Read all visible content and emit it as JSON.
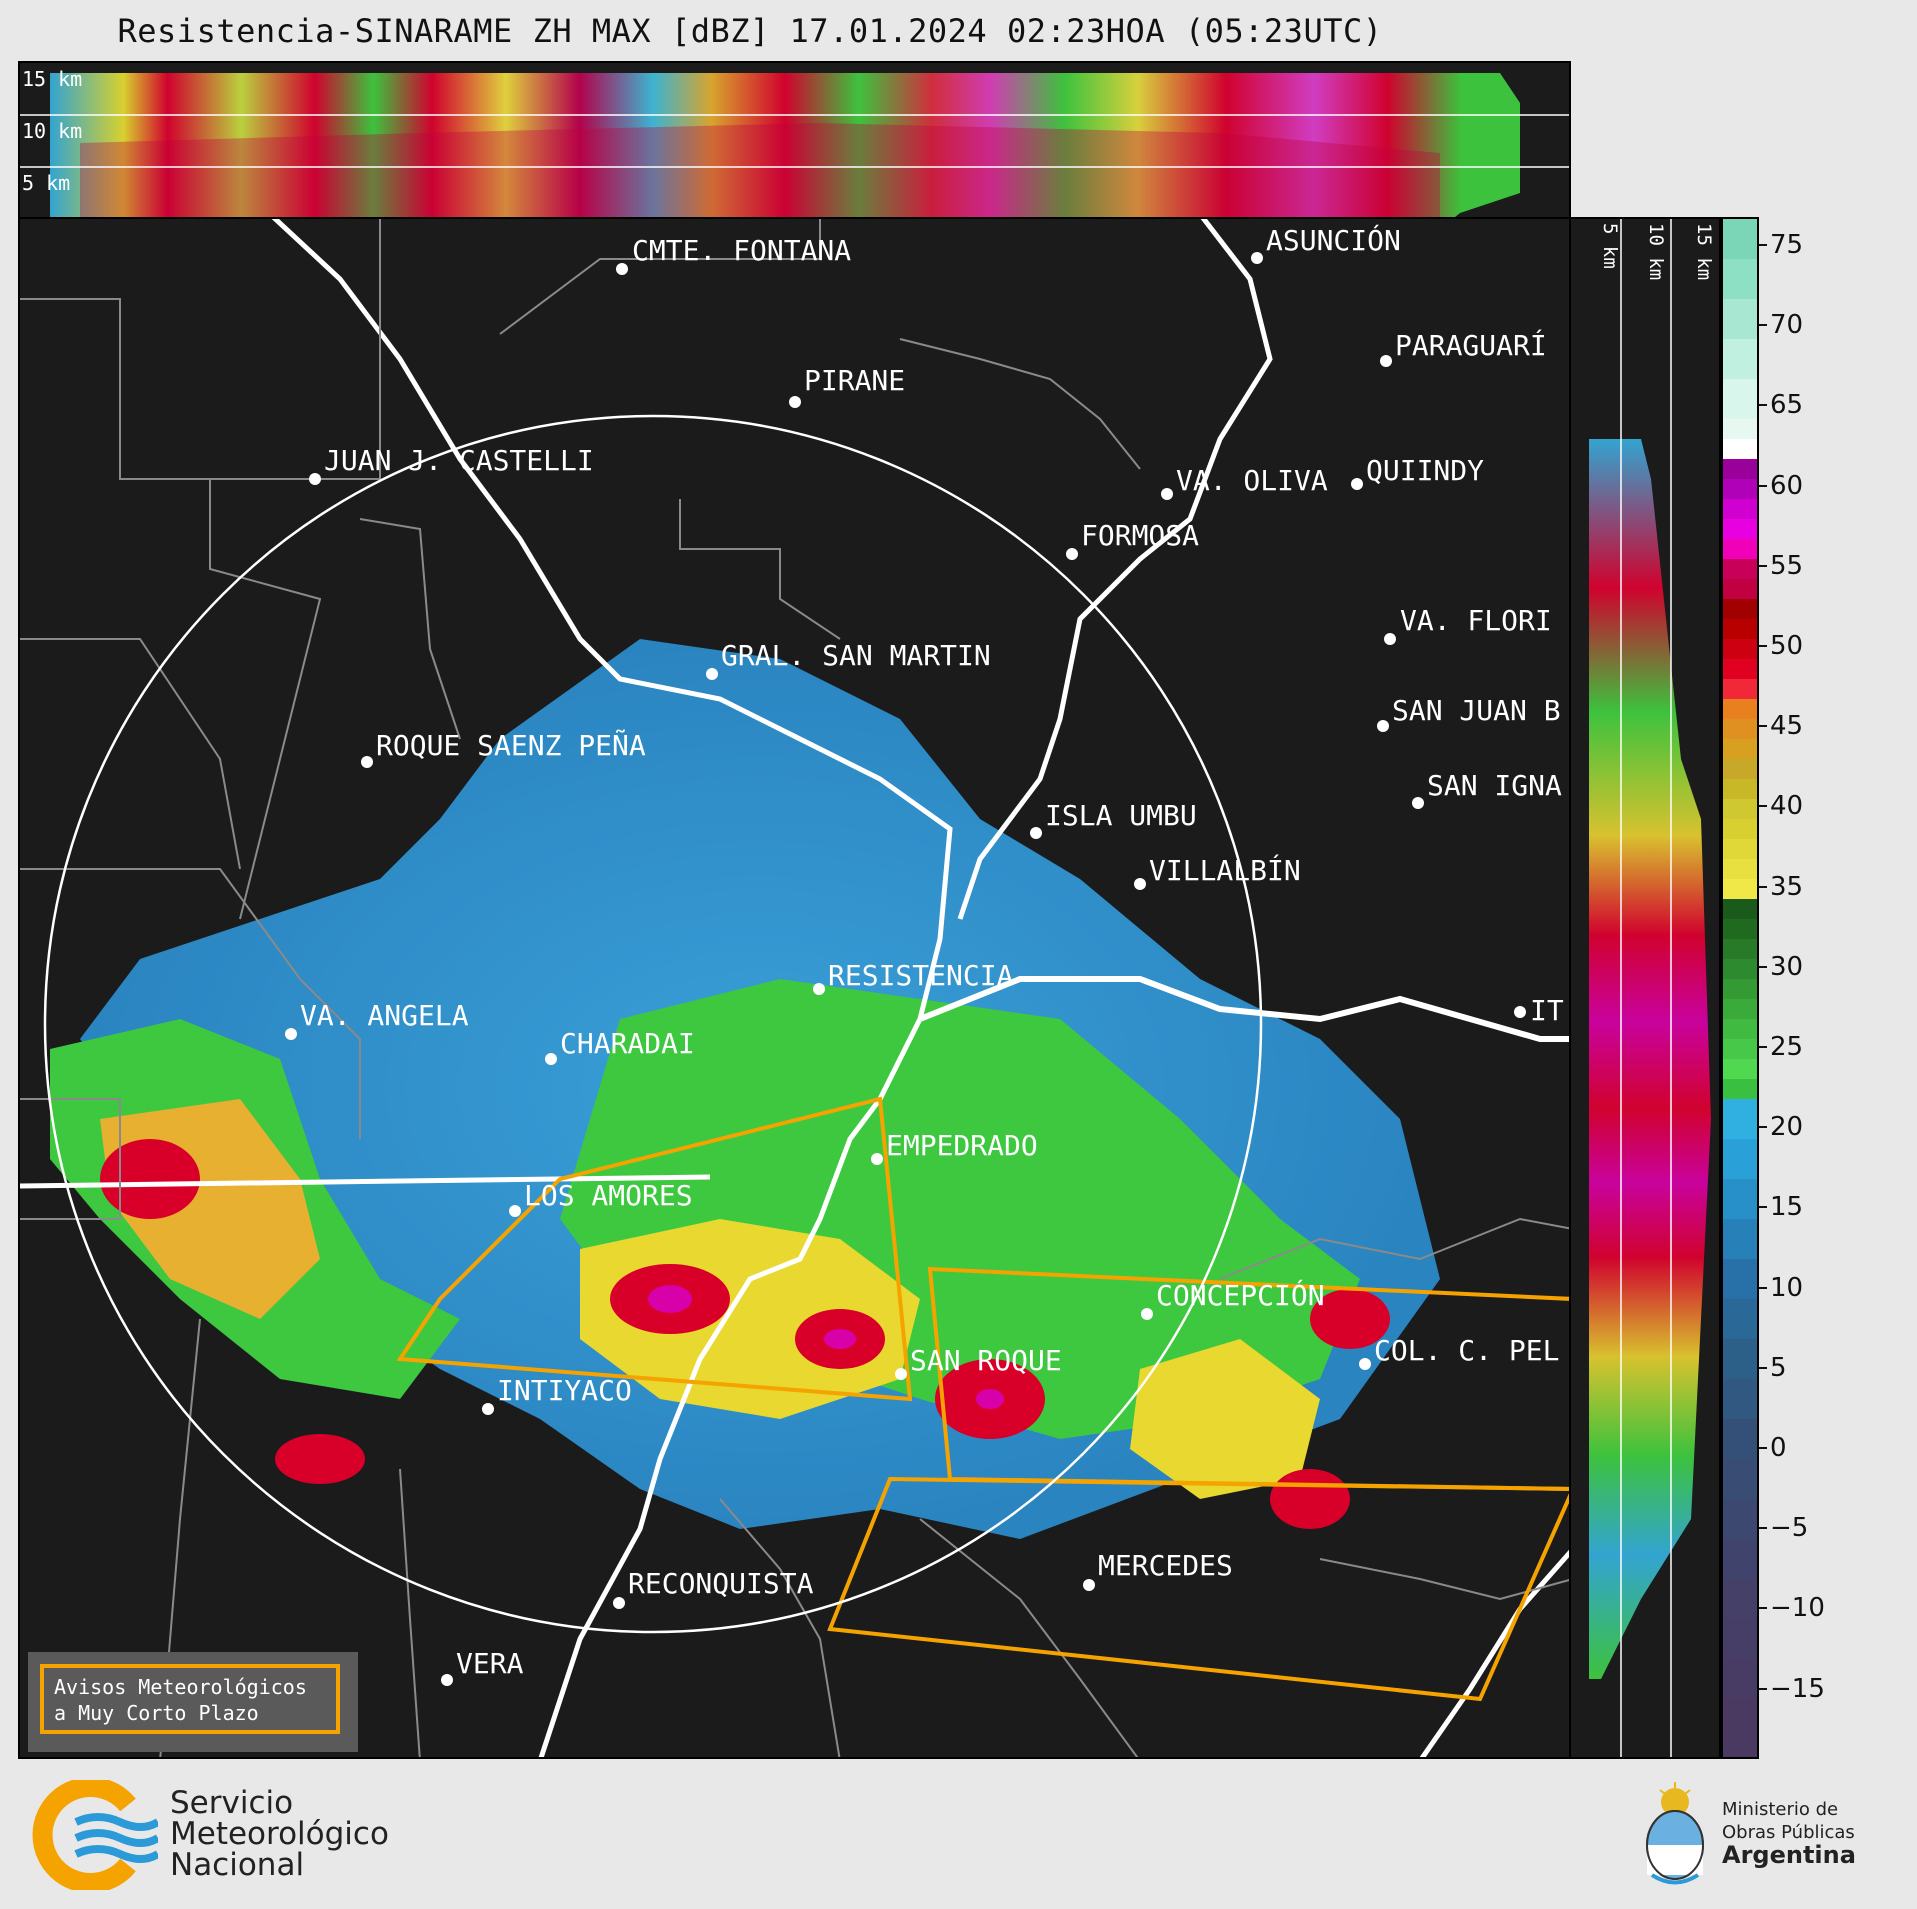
{
  "title": "Resistencia-SINARAME ZH MAX [dBZ] 17.01.2024 02:23HOA (05:23UTC)",
  "top_panel": {
    "height_labels": [
      "15 km",
      "10 km",
      "5 km"
    ]
  },
  "right_panel": {
    "height_labels": [
      "5 km",
      "10 km",
      "15 km"
    ]
  },
  "colorbar": {
    "unit": "dBZ",
    "ticks": [
      "75",
      "70",
      "65",
      "60",
      "55",
      "50",
      "45",
      "40",
      "35",
      "30",
      "25",
      "20",
      "15",
      "10",
      "5",
      "0",
      "−5",
      "−10",
      "−15"
    ]
  },
  "cities": [
    {
      "name": "CMTE. FONTANA"
    },
    {
      "name": "ASUNCIÓN"
    },
    {
      "name": "PIRANE"
    },
    {
      "name": "PARAGUARÍ"
    },
    {
      "name": "JUAN J. CASTELLI"
    },
    {
      "name": "VA. OLIVA"
    },
    {
      "name": "QUIINDY"
    },
    {
      "name": "FORMOSA"
    },
    {
      "name": "VA. FLORI"
    },
    {
      "name": "GRAL. SAN MARTIN"
    },
    {
      "name": "SAN JUAN B"
    },
    {
      "name": "ROQUE SAENZ PEÑA"
    },
    {
      "name": "SAN IGNA"
    },
    {
      "name": "ISLA UMBU"
    },
    {
      "name": "VILLALBÍN"
    },
    {
      "name": "RESISTENCIA"
    },
    {
      "name": "VA. ANGELA"
    },
    {
      "name": "CHARADAI"
    },
    {
      "name": "IT"
    },
    {
      "name": "EMPEDRADO"
    },
    {
      "name": "LOS AMORES"
    },
    {
      "name": "CONCEPCIÓN"
    },
    {
      "name": "SAN ROQUE"
    },
    {
      "name": "COL. C. PEL"
    },
    {
      "name": "INTIYACO"
    },
    {
      "name": "MERCEDES"
    },
    {
      "name": "RECONQUISTA"
    },
    {
      "name": "VERA"
    }
  ],
  "warning_box": {
    "line1": "Avisos Meteorológicos",
    "line2": "a Muy Corto Plazo"
  },
  "smn": {
    "line1": "Servicio",
    "line2": "Meteorológico",
    "line3": "Nacional"
  },
  "ministry": {
    "line1": "Ministerio de",
    "line2": "Obras Públicas",
    "line3": "Argentina"
  },
  "colors": {
    "background": "#1b1b1b",
    "warning": "#f5a300",
    "river": "#ffffff",
    "borders": "#8a8a8a"
  }
}
